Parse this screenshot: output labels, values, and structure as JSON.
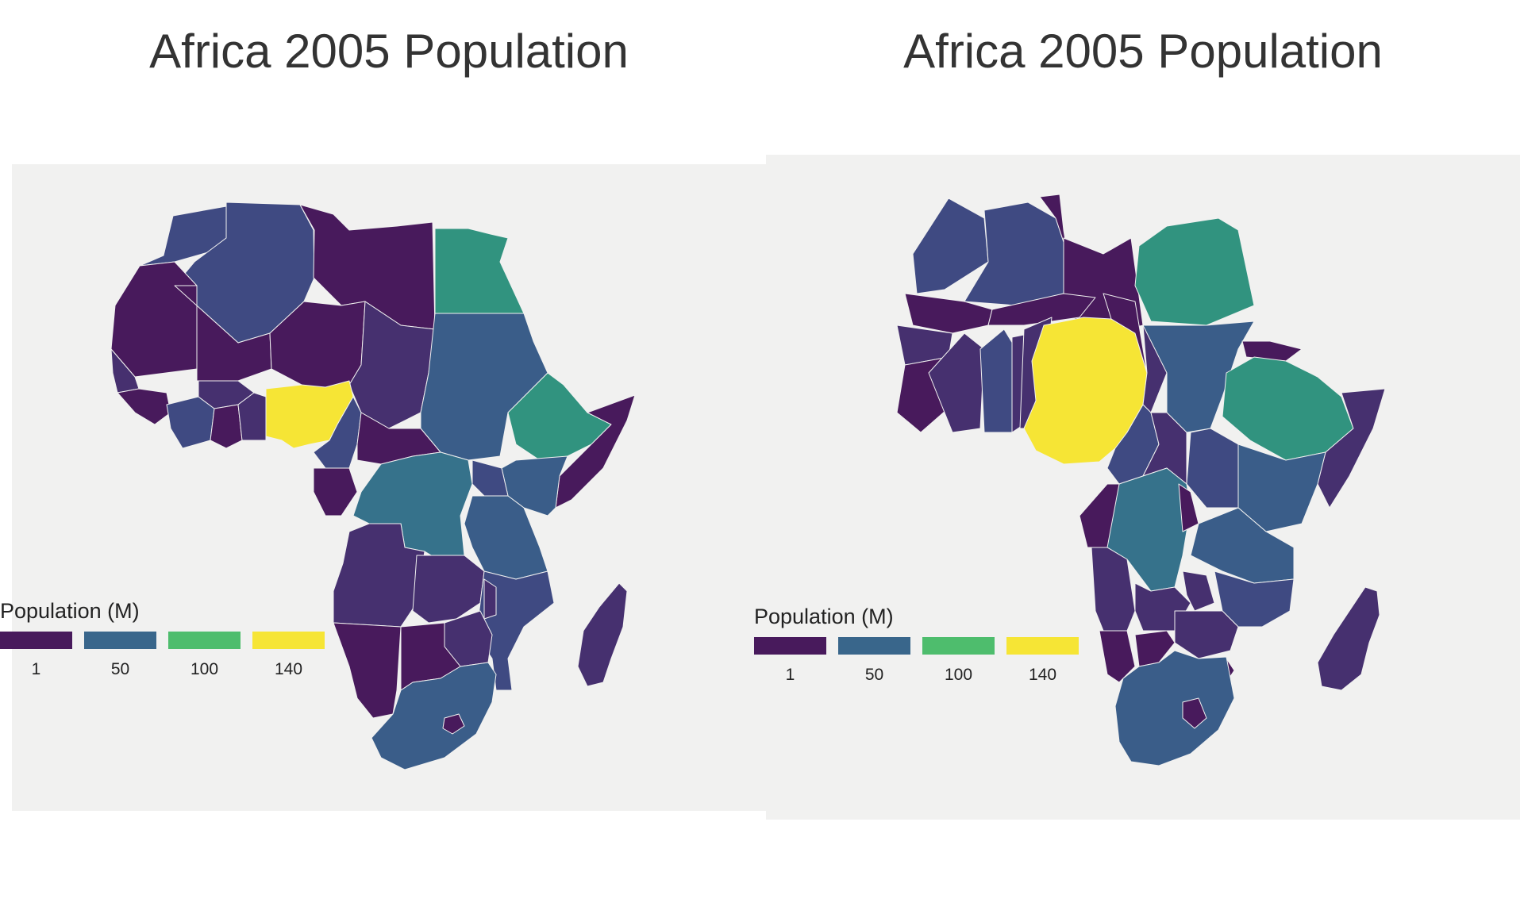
{
  "maps": [
    {
      "title": "Africa 2005 Population",
      "legend": {
        "title": "Population (M)",
        "keys": [
          {
            "label": "1",
            "color": "#481a5c"
          },
          {
            "label": "50",
            "color": "#39668b"
          },
          {
            "label": "100",
            "color": "#4ebd6d"
          },
          {
            "label": "140",
            "color": "#f6e535"
          }
        ]
      }
    },
    {
      "title": "Africa 2005 Population",
      "legend": {
        "title": "Population (M)",
        "keys": [
          {
            "label": "1",
            "color": "#481a5c"
          },
          {
            "label": "50",
            "color": "#39668b"
          },
          {
            "label": "100",
            "color": "#4ebd6d"
          },
          {
            "label": "140",
            "color": "#f6e535"
          }
        ]
      }
    }
  ],
  "colors": {
    "panel_background": "#f1f1f0",
    "darkest": "#481a5c",
    "dark": "#46306f",
    "mid_dark": "#3f4a82",
    "mid": "#3a5d89",
    "teal": "#36728b",
    "green_teal": "#31937f",
    "yellow": "#f6e535"
  }
}
